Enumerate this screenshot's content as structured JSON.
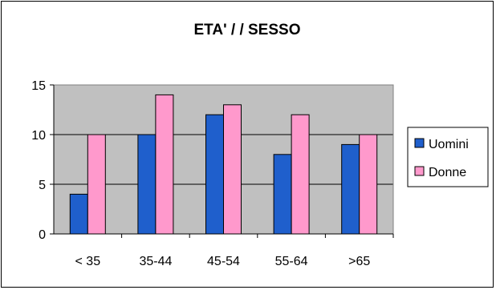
{
  "chart_data": {
    "type": "bar",
    "title": "ETA' / / SESSO",
    "xlabel": "",
    "ylabel": "",
    "categories": [
      "< 35",
      "35-44",
      "45-54",
      "55-64",
      ">65"
    ],
    "series": [
      {
        "name": "Uomini",
        "values": [
          4,
          10,
          12,
          8,
          9
        ],
        "color": "#1f5fcc"
      },
      {
        "name": "Donne",
        "values": [
          10,
          14,
          13,
          12,
          10
        ],
        "color": "#ff99cc"
      }
    ],
    "ylim": [
      0,
      15
    ],
    "yticks": [
      0,
      5,
      10,
      15
    ],
    "grid": true,
    "plot_background": "#c0c0c0",
    "legend_position": "right"
  }
}
